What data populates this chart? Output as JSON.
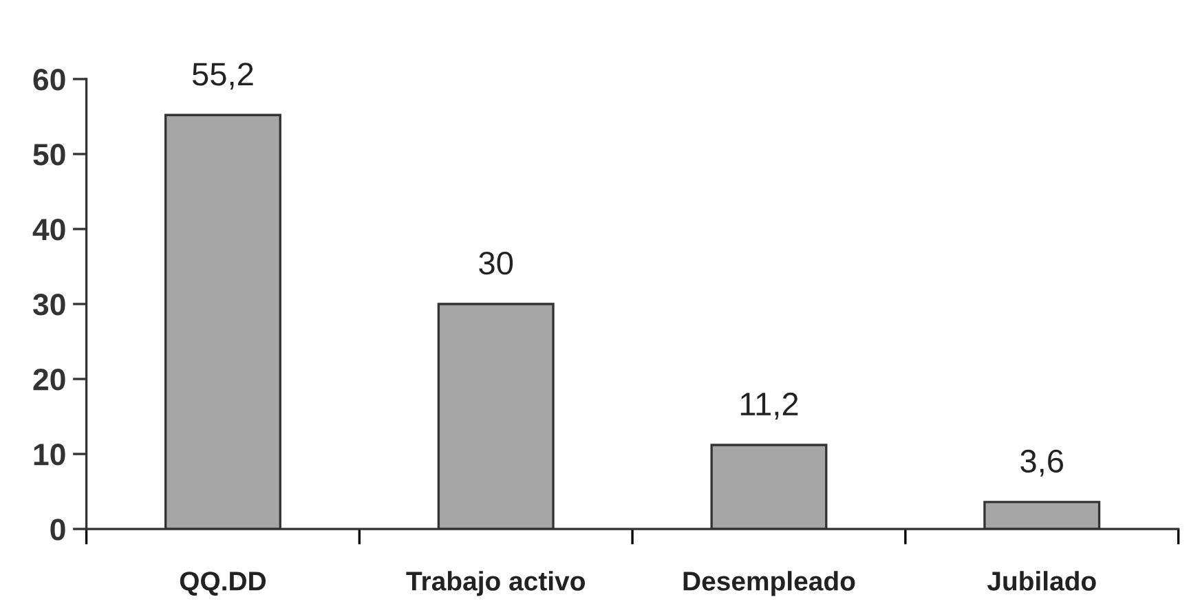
{
  "chart_data": {
    "type": "bar",
    "categories": [
      "QQ.DD",
      "Trabajo activo",
      "Desempleado",
      "Jubilado"
    ],
    "values": [
      55.2,
      30,
      11.2,
      3.6
    ],
    "value_labels": [
      "55,2",
      "30",
      "11,2",
      "3,6"
    ],
    "color": "#a6a6a6",
    "ylim": [
      0,
      60
    ],
    "yticks": [
      0,
      10,
      20,
      30,
      40,
      50,
      60
    ],
    "grid": false,
    "legend": false
  }
}
